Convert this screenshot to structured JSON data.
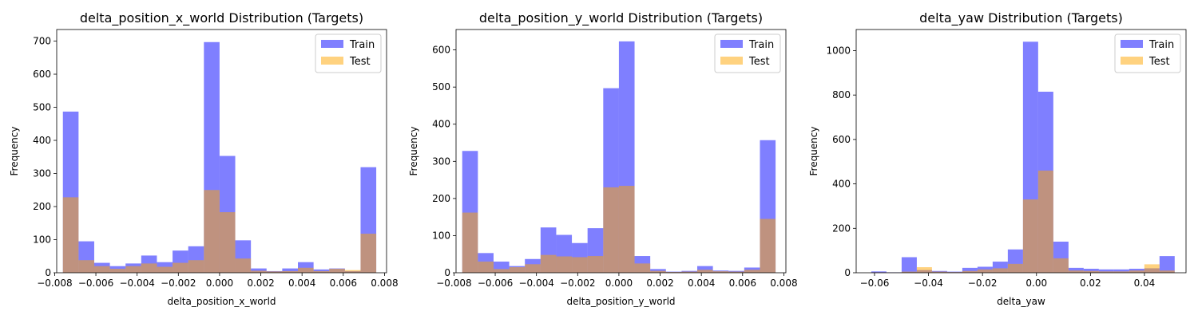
{
  "chart_data": [
    {
      "type": "histogram",
      "title": "delta_position_x_world Distribution (Targets)",
      "xlabel": "delta_position_x_world",
      "ylabel": "Frequency",
      "xlim": [
        -0.0079,
        0.0081
      ],
      "ylim": [
        0,
        735
      ],
      "xticks": [
        -0.008,
        -0.006,
        -0.004,
        -0.002,
        0.0,
        0.002,
        0.004,
        0.006,
        0.008
      ],
      "xtick_labels": [
        "−0.008",
        "−0.006",
        "−0.004",
        "−0.002",
        "0.000",
        "0.002",
        "0.004",
        "0.006",
        "0.008"
      ],
      "yticks": [
        0,
        100,
        200,
        300,
        400,
        500,
        600,
        700
      ],
      "legend_position": "upper right",
      "series": [
        {
          "name": "Train",
          "color": "#0000ff",
          "alpha": 0.5,
          "bins": [
            -0.0075,
            -0.00675,
            -0.006,
            -0.00525,
            -0.0045,
            -0.00375,
            -0.003,
            -0.00225,
            -0.0015,
            -0.00075,
            0.0,
            0.00075,
            0.0015,
            0.00225,
            0.003,
            0.00375,
            0.0045,
            0.00525,
            0.006,
            0.00675,
            0.0075
          ],
          "bin_start": -0.0076,
          "bin_width": 0.00076,
          "counts": [
            487,
            95,
            30,
            20,
            28,
            52,
            32,
            67,
            80,
            697,
            353,
            98,
            13,
            5,
            13,
            32,
            10,
            13,
            5,
            319
          ]
        },
        {
          "name": "Test",
          "color": "#ffa500",
          "alpha": 0.5,
          "bin_start": -0.0076,
          "bin_width": 0.00076,
          "counts": [
            228,
            38,
            20,
            12,
            20,
            28,
            18,
            30,
            38,
            250,
            183,
            43,
            6,
            4,
            5,
            15,
            5,
            12,
            8,
            118
          ]
        }
      ]
    },
    {
      "type": "histogram",
      "title": "delta_position_y_world Distribution (Targets)",
      "xlabel": "delta_position_y_world",
      "ylabel": "Frequency",
      "xlim": [
        -0.0079,
        0.0081
      ],
      "ylim": [
        0,
        655
      ],
      "xticks": [
        -0.008,
        -0.006,
        -0.004,
        -0.002,
        0.0,
        0.002,
        0.004,
        0.006,
        0.008
      ],
      "xtick_labels": [
        "−0.008",
        "−0.006",
        "−0.004",
        "−0.002",
        "0.000",
        "0.002",
        "0.004",
        "0.006",
        "0.008"
      ],
      "yticks": [
        0,
        100,
        200,
        300,
        400,
        500,
        600
      ],
      "legend_position": "upper right",
      "series": [
        {
          "name": "Train",
          "color": "#0000ff",
          "alpha": 0.5,
          "bin_start": -0.0076,
          "bin_width": 0.00076,
          "counts": [
            328,
            53,
            30,
            18,
            37,
            122,
            102,
            80,
            120,
            497,
            623,
            45,
            10,
            3,
            5,
            18,
            6,
            5,
            14,
            357
          ]
        },
        {
          "name": "Test",
          "color": "#ffa500",
          "alpha": 0.5,
          "bin_start": -0.0076,
          "bin_width": 0.00076,
          "counts": [
            162,
            30,
            10,
            15,
            23,
            48,
            44,
            42,
            45,
            230,
            234,
            25,
            5,
            2,
            3,
            8,
            4,
            3,
            8,
            145
          ]
        }
      ]
    },
    {
      "type": "histogram",
      "title": "delta_yaw Distribution (Targets)",
      "xlabel": "delta_yaw",
      "ylabel": "Frequency",
      "xlim": [
        -0.0668,
        0.0554
      ],
      "ylim": [
        0,
        1095
      ],
      "xticks": [
        -0.06,
        -0.04,
        -0.02,
        0.0,
        0.02,
        0.04
      ],
      "xtick_labels": [
        "−0.06",
        "−0.04",
        "−0.02",
        "0.00",
        "0.02",
        "0.04"
      ],
      "yticks": [
        0,
        200,
        400,
        600,
        800,
        1000
      ],
      "legend_position": "upper right",
      "series": [
        {
          "name": "Train",
          "color": "#0000ff",
          "alpha": 0.5,
          "bin_start": -0.0612,
          "bin_width": 0.00562,
          "counts": [
            6,
            2,
            70,
            12,
            8,
            5,
            22,
            27,
            50,
            105,
            1040,
            815,
            140,
            22,
            18,
            15,
            15,
            18,
            20,
            75
          ]
        },
        {
          "name": "Test",
          "color": "#ffa500",
          "alpha": 0.5,
          "bin_start": -0.0612,
          "bin_width": 0.00562,
          "counts": [
            2,
            1,
            5,
            25,
            5,
            3,
            8,
            15,
            20,
            40,
            330,
            460,
            65,
            10,
            8,
            6,
            6,
            10,
            38,
            10
          ]
        }
      ]
    }
  ]
}
